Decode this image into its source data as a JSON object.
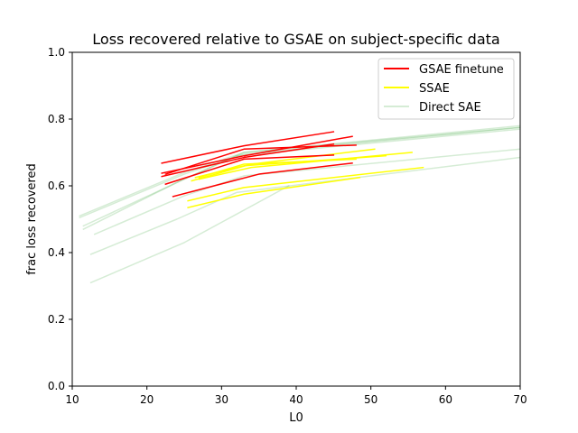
{
  "chart_data": {
    "type": "line",
    "title": "Loss recovered relative to GSAE on subject-specific data",
    "xlabel": "L0",
    "ylabel": "frac loss recovered",
    "xlim": [
      10,
      70
    ],
    "ylim": [
      0.0,
      1.0
    ],
    "xticks": [
      "10",
      "20",
      "30",
      "40",
      "50",
      "60",
      "70"
    ],
    "yticks": [
      "0.0",
      "0.2",
      "0.4",
      "0.6",
      "0.8",
      "1.0"
    ],
    "grid": false,
    "legend_position": "top-right",
    "legend": [
      {
        "label": "GSAE finetune",
        "color": "#ff0000",
        "opacity": 1.0
      },
      {
        "label": "SSAE",
        "color": "#ffff00",
        "opacity": 1.0
      },
      {
        "label": "Direct SAE",
        "color": "#2ca02c",
        "opacity": 0.2
      }
    ],
    "series": [
      {
        "group": "Direct SAE",
        "color": "#2ca02c",
        "opacity": 0.2,
        "points": [
          [
            11,
            0.51
          ],
          [
            25,
            0.64
          ],
          [
            33,
            0.7
          ],
          [
            70,
            0.78
          ]
        ]
      },
      {
        "group": "Direct SAE",
        "color": "#2ca02c",
        "opacity": 0.2,
        "points": [
          [
            11,
            0.505
          ],
          [
            25,
            0.635
          ],
          [
            33,
            0.695
          ],
          [
            70,
            0.775
          ]
        ]
      },
      {
        "group": "Direct SAE",
        "color": "#2ca02c",
        "opacity": 0.2,
        "points": [
          [
            11.5,
            0.47
          ],
          [
            24,
            0.61
          ],
          [
            32,
            0.69
          ],
          [
            70,
            0.77
          ]
        ]
      },
      {
        "group": "Direct SAE",
        "color": "#2ca02c",
        "opacity": 0.2,
        "points": [
          [
            11.5,
            0.48
          ],
          [
            25,
            0.62
          ],
          [
            33,
            0.7
          ],
          [
            70,
            0.775
          ]
        ]
      },
      {
        "group": "Direct SAE",
        "color": "#2ca02c",
        "opacity": 0.2,
        "points": [
          [
            13,
            0.455
          ],
          [
            25,
            0.57
          ],
          [
            33,
            0.63
          ],
          [
            70,
            0.71
          ]
        ]
      },
      {
        "group": "Direct SAE",
        "color": "#2ca02c",
        "opacity": 0.2,
        "points": [
          [
            12.5,
            0.395
          ],
          [
            24,
            0.5
          ],
          [
            32,
            0.58
          ],
          [
            70,
            0.685
          ]
        ]
      },
      {
        "group": "Direct SAE",
        "color": "#2ca02c",
        "opacity": 0.2,
        "points": [
          [
            12.5,
            0.31
          ],
          [
            25,
            0.43
          ],
          [
            39,
            0.6
          ]
        ]
      },
      {
        "group": "SSAE",
        "color": "#ffff00",
        "opacity": 1.0,
        "points": [
          [
            26,
            0.615
          ],
          [
            34,
            0.665
          ],
          [
            50.5,
            0.71
          ]
        ]
      },
      {
        "group": "SSAE",
        "color": "#ffff00",
        "opacity": 1.0,
        "points": [
          [
            27,
            0.62
          ],
          [
            34,
            0.655
          ],
          [
            55.5,
            0.7
          ]
        ]
      },
      {
        "group": "SSAE",
        "color": "#ffff00",
        "opacity": 1.0,
        "points": [
          [
            26.5,
            0.625
          ],
          [
            33,
            0.66
          ],
          [
            52,
            0.69
          ]
        ]
      },
      {
        "group": "SSAE",
        "color": "#ffff00",
        "opacity": 1.0,
        "points": [
          [
            27,
            0.625
          ],
          [
            33,
            0.665
          ],
          [
            48,
            0.68
          ]
        ]
      },
      {
        "group": "SSAE",
        "color": "#ffff00",
        "opacity": 1.0,
        "points": [
          [
            25.5,
            0.555
          ],
          [
            33,
            0.595
          ],
          [
            57,
            0.655
          ]
        ]
      },
      {
        "group": "SSAE",
        "color": "#ffff00",
        "opacity": 1.0,
        "points": [
          [
            25.5,
            0.535
          ],
          [
            33,
            0.575
          ],
          [
            48.5,
            0.625
          ]
        ]
      },
      {
        "group": "GSAE finetune",
        "color": "#ff0000",
        "opacity": 1.0,
        "points": [
          [
            22,
            0.668
          ],
          [
            33,
            0.72
          ],
          [
            45,
            0.762
          ]
        ]
      },
      {
        "group": "GSAE finetune",
        "color": "#ff0000",
        "opacity": 1.0,
        "points": [
          [
            22,
            0.638
          ],
          [
            33,
            0.69
          ],
          [
            47.5,
            0.748
          ]
        ]
      },
      {
        "group": "GSAE finetune",
        "color": "#ff0000",
        "opacity": 1.0,
        "points": [
          [
            22.5,
            0.635
          ],
          [
            33,
            0.71
          ],
          [
            48,
            0.722
          ]
        ]
      },
      {
        "group": "GSAE finetune",
        "color": "#ff0000",
        "opacity": 1.0,
        "points": [
          [
            22,
            0.628
          ],
          [
            33,
            0.685
          ],
          [
            45,
            0.725
          ]
        ]
      },
      {
        "group": "GSAE finetune",
        "color": "#ff0000",
        "opacity": 1.0,
        "points": [
          [
            22.5,
            0.605
          ],
          [
            33,
            0.68
          ],
          [
            45,
            0.692
          ]
        ]
      },
      {
        "group": "GSAE finetune",
        "color": "#ff0000",
        "opacity": 1.0,
        "points": [
          [
            23.5,
            0.568
          ],
          [
            35,
            0.635
          ],
          [
            47.5,
            0.668
          ]
        ]
      }
    ]
  }
}
